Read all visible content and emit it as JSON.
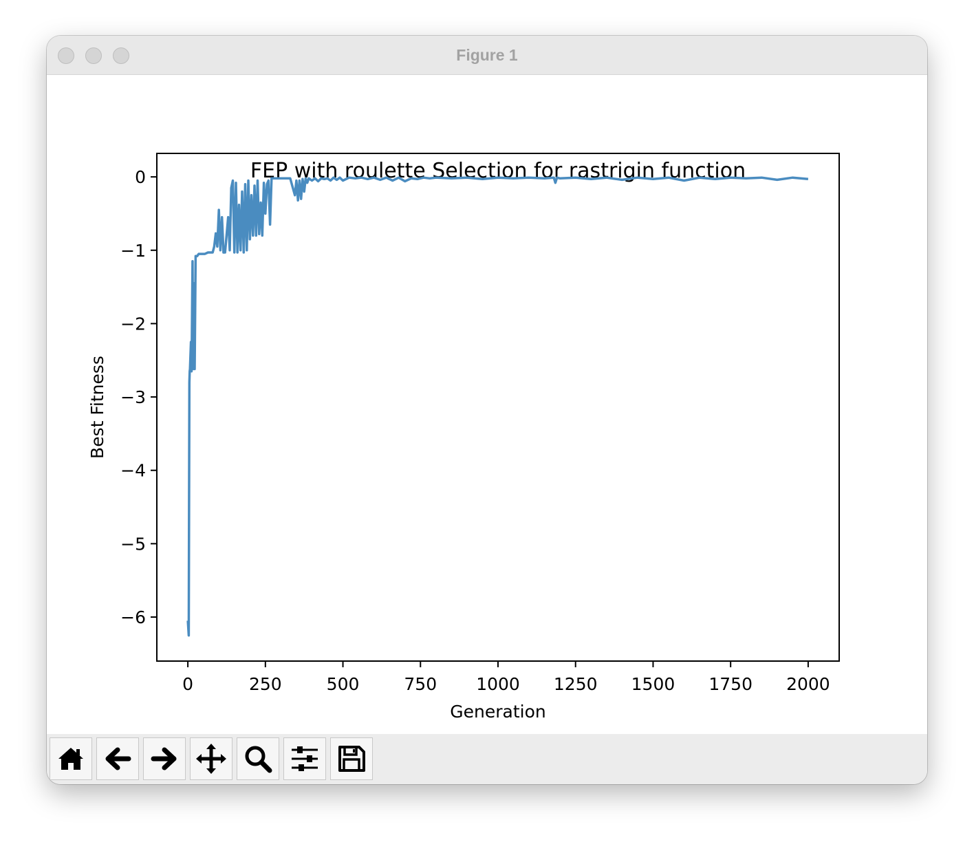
{
  "window": {
    "title": "Figure 1"
  },
  "toolbar": {
    "buttons": [
      {
        "name": "home",
        "icon": "home-icon"
      },
      {
        "name": "back",
        "icon": "arrow-left-icon"
      },
      {
        "name": "forward",
        "icon": "arrow-right-icon"
      },
      {
        "name": "pan",
        "icon": "move-icon"
      },
      {
        "name": "zoom",
        "icon": "zoom-icon"
      },
      {
        "name": "configure-subplots",
        "icon": "sliders-icon"
      },
      {
        "name": "save",
        "icon": "save-icon"
      }
    ]
  },
  "chart_data": {
    "type": "line",
    "title": "FEP with roulette Selection for rastrigin function",
    "xlabel": "Generation",
    "ylabel": "Best Fitness",
    "xlim": [
      -100,
      2100
    ],
    "ylim": [
      -6.6,
      0.32
    ],
    "xticks": [
      0,
      250,
      500,
      750,
      1000,
      1250,
      1500,
      1750,
      2000
    ],
    "yticks": [
      0,
      -1,
      -2,
      -3,
      -4,
      -5,
      -6
    ],
    "xtick_labels": [
      "0",
      "250",
      "500",
      "750",
      "1000",
      "1250",
      "1500",
      "1750",
      "2000"
    ],
    "ytick_labels": [
      "0",
      "−1",
      "−2",
      "−3",
      "−4",
      "−5",
      "−6"
    ],
    "grid": false,
    "series": [
      {
        "color": "#4a8cc0",
        "x": [
          0,
          3,
          5,
          6,
          7,
          10,
          12,
          15,
          17,
          20,
          22,
          25,
          27,
          30,
          35,
          45,
          55,
          65,
          80,
          85,
          90,
          95,
          100,
          105,
          110,
          115,
          120,
          130,
          135,
          140,
          145,
          150,
          155,
          160,
          165,
          170,
          175,
          180,
          185,
          190,
          195,
          200,
          205,
          210,
          215,
          220,
          225,
          230,
          235,
          240,
          245,
          250,
          255,
          260,
          265,
          270,
          275,
          280,
          300,
          330,
          345,
          350,
          355,
          360,
          365,
          370,
          375,
          380,
          385,
          390,
          400,
          410,
          420,
          430,
          440,
          450,
          460,
          470,
          480,
          490,
          500,
          520,
          540,
          560,
          580,
          600,
          620,
          640,
          660,
          680,
          700,
          720,
          740,
          760,
          780,
          800,
          850,
          900,
          950,
          1000,
          1050,
          1100,
          1150,
          1180,
          1185,
          1190,
          1200,
          1250,
          1300,
          1350,
          1400,
          1450,
          1500,
          1550,
          1600,
          1650,
          1700,
          1750,
          1800,
          1850,
          1900,
          1950,
          2000
        ],
        "y": [
          -6.05,
          -6.25,
          -2.8,
          -2.65,
          -2.62,
          -2.25,
          -2.65,
          -1.15,
          -2.62,
          -1.45,
          -2.62,
          -1.08,
          -1.08,
          -1.08,
          -1.05,
          -1.05,
          -1.05,
          -1.03,
          -1.03,
          -0.95,
          -0.77,
          -0.95,
          -0.45,
          -1.0,
          -0.55,
          -1.03,
          -1.03,
          -0.55,
          -1.0,
          -0.15,
          -0.05,
          -1.03,
          -0.08,
          -1.03,
          -0.38,
          -1.0,
          -0.2,
          -1.03,
          -0.1,
          -1.0,
          -0.05,
          -0.85,
          -0.25,
          -0.8,
          -0.12,
          -0.8,
          -0.05,
          -0.78,
          -0.35,
          -0.8,
          -0.08,
          -0.5,
          -0.1,
          -0.05,
          -0.65,
          -0.02,
          -0.02,
          -0.02,
          -0.02,
          -0.02,
          -0.25,
          -0.05,
          -0.32,
          -0.05,
          -0.3,
          -0.03,
          -0.2,
          -0.02,
          -0.08,
          -0.02,
          -0.05,
          -0.02,
          -0.06,
          -0.02,
          -0.03,
          -0.02,
          -0.05,
          -0.01,
          -0.04,
          -0.01,
          -0.05,
          -0.01,
          -0.02,
          -0.01,
          -0.03,
          -0.01,
          -0.04,
          -0.01,
          -0.05,
          -0.01,
          -0.06,
          -0.02,
          -0.03,
          -0.01,
          -0.02,
          -0.01,
          -0.02,
          -0.01,
          -0.03,
          -0.01,
          -0.02,
          -0.01,
          -0.02,
          -0.01,
          -0.08,
          -0.01,
          -0.02,
          -0.01,
          -0.03,
          -0.01,
          -0.04,
          -0.01,
          -0.03,
          -0.01,
          -0.05,
          -0.01,
          -0.03,
          -0.01,
          -0.02,
          -0.01,
          -0.04,
          -0.01,
          -0.03
        ]
      }
    ]
  }
}
